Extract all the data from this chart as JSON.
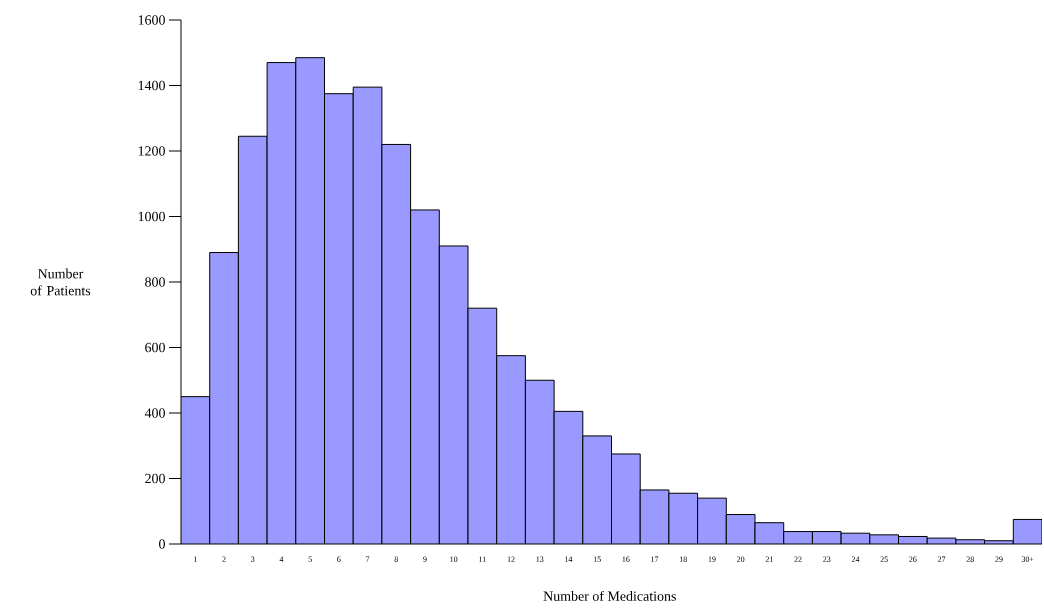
{
  "chart_data": {
    "type": "bar",
    "xlabel": "Number of Medications",
    "ylabel": "Number of Patients",
    "categories": [
      "1",
      "2",
      "3",
      "4",
      "5",
      "6",
      "7",
      "8",
      "9",
      "10",
      "11",
      "12",
      "13",
      "14",
      "15",
      "16",
      "17",
      "18",
      "19",
      "20",
      "21",
      "22",
      "23",
      "24",
      "25",
      "26",
      "27",
      "28",
      "29",
      "30+"
    ],
    "values": [
      450,
      890,
      1245,
      1470,
      1485,
      1375,
      1395,
      1220,
      1020,
      910,
      720,
      575,
      500,
      405,
      330,
      275,
      165,
      155,
      140,
      90,
      65,
      38,
      38,
      33,
      28,
      23,
      18,
      13,
      10,
      75
    ],
    "color": "#9999ff",
    "ylim": [
      0,
      1600
    ],
    "yticks": [
      0,
      200,
      400,
      600,
      800,
      1000,
      1200,
      1400,
      1600
    ],
    "grid": false
  }
}
